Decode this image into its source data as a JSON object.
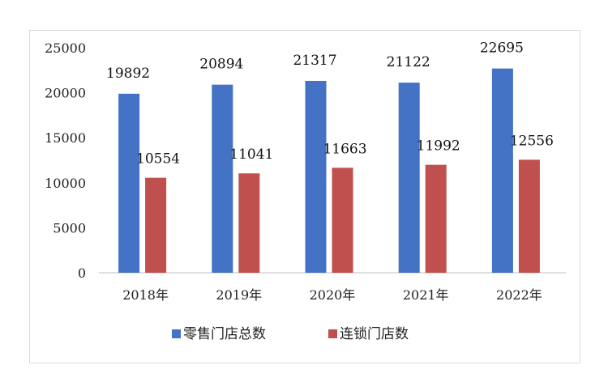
{
  "chart_data": {
    "type": "bar",
    "categories": [
      "2018年",
      "2019年",
      "2020年",
      "2021年",
      "2022年"
    ],
    "series": [
      {
        "name": "零售门店总数",
        "color": "#4472c4",
        "values": [
          19892,
          20894,
          21317,
          21122,
          22695
        ]
      },
      {
        "name": "连锁门店数",
        "color": "#c0504d",
        "values": [
          10554,
          11041,
          11663,
          11992,
          12556
        ]
      }
    ],
    "yticks": [
      "0",
      "5000",
      "10000",
      "15000",
      "20000",
      "25000"
    ],
    "ylim": [
      0,
      25000
    ],
    "grid": false,
    "legend": "bottom"
  }
}
